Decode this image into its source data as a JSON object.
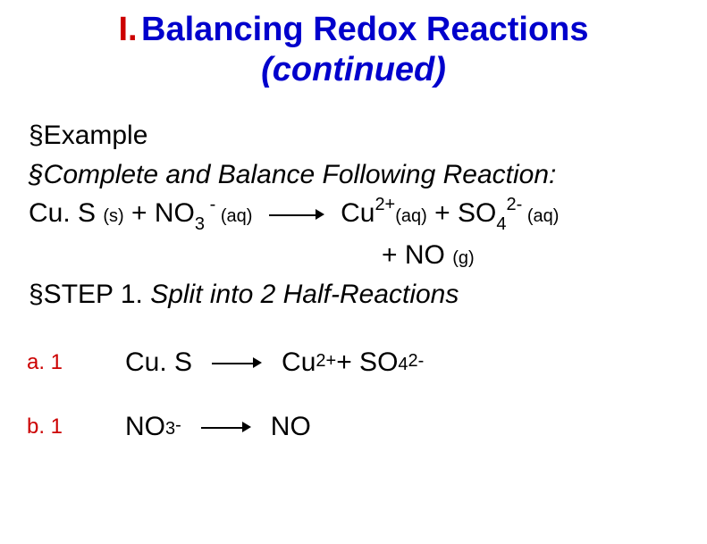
{
  "title": {
    "num": "I.",
    "main": "Balancing Redox Reactions",
    "sub": "(continued)"
  },
  "lines": {
    "example": "§Example",
    "prompt": "§Complete and Balance Following Reaction:"
  },
  "rxn": {
    "r1": "Cu. S ",
    "r1_state": "(s)",
    "plus1": " + NO",
    "no3_sub": "3",
    "no3_sup": " - ",
    "no3_state": "(aq)",
    "p1": "Cu",
    "cu_sup": "2+",
    "cu_state": "(aq)",
    "plus2": " + SO",
    "so4_sub": "4",
    "so4_sup": "2- ",
    "so4_state": "(aq)",
    "plus3": "+ NO ",
    "no_state": "(g)"
  },
  "step1": "§STEP 1. Split into 2 Half-Reactions",
  "half": {
    "a_label": "a. 1",
    "a_left": "Cu. S",
    "a_right_cu": "Cu",
    "a_right_cu_sup": "2+",
    "a_plus": "  +  SO",
    "a_so4_sub": "4",
    "a_so4_sup": "2-",
    "b_label": "b. 1",
    "b_left": "NO",
    "b_left_sub": "3",
    "b_left_sup": " -",
    "b_right": "NO"
  }
}
